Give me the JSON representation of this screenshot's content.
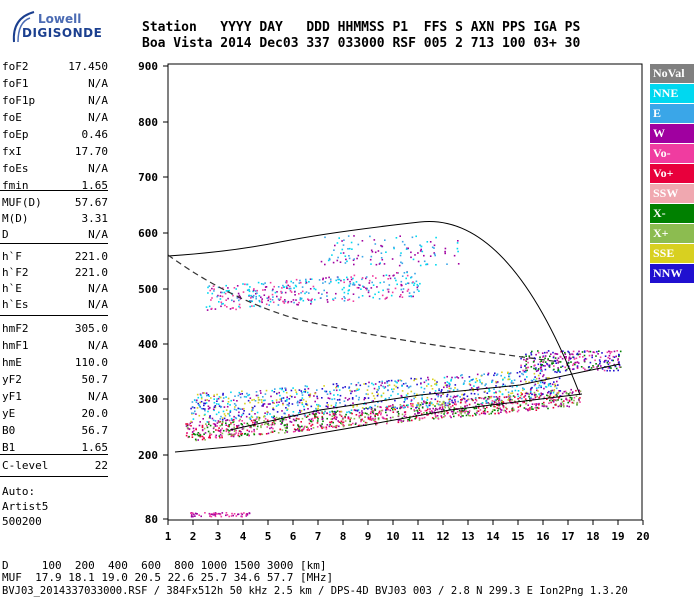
{
  "logo": {
    "line1": "Lowell",
    "line2": "DIGISONDE"
  },
  "header": {
    "row1": "Station   YYYY DAY   DDD HHMMSS P1  FFS S AXN PPS IGA PS",
    "row2": "Boa Vista 2014 Dec03 337 033000 RSF 005 2 713 100 03+ 30"
  },
  "params_group1": [
    {
      "k": "foF2",
      "v": "17.450"
    },
    {
      "k": "foF1",
      "v": "N/A"
    },
    {
      "k": "foF1p",
      "v": "N/A"
    },
    {
      "k": "foE",
      "v": "N/A"
    },
    {
      "k": "foEp",
      "v": "0.46"
    },
    {
      "k": "fxI",
      "v": "17.70"
    },
    {
      "k": "foEs",
      "v": "N/A"
    },
    {
      "k": "fmin",
      "v": "1.65"
    }
  ],
  "params_group2": [
    {
      "k": "MUF(D)",
      "v": "57.67"
    },
    {
      "k": "M(D)",
      "v": "3.31"
    },
    {
      "k": "D",
      "v": "N/A"
    }
  ],
  "params_group3": [
    {
      "k": "h`F",
      "v": "221.0"
    },
    {
      "k": "h`F2",
      "v": "221.0"
    },
    {
      "k": "h`E",
      "v": "N/A"
    },
    {
      "k": "h`Es",
      "v": "N/A"
    }
  ],
  "params_group4": [
    {
      "k": "hmF2",
      "v": "305.0"
    },
    {
      "k": "hmF1",
      "v": "N/A"
    },
    {
      "k": "hmE",
      "v": "110.0"
    },
    {
      "k": "yF2",
      "v": "50.7"
    },
    {
      "k": "yF1",
      "v": "N/A"
    },
    {
      "k": "yE",
      "v": "20.0"
    },
    {
      "k": "B0",
      "v": "56.7"
    },
    {
      "k": "B1",
      "v": "1.65"
    }
  ],
  "params_group5": [
    {
      "k": "C-level",
      "v": "22"
    }
  ],
  "autoscale": {
    "line1": "Auto:",
    "line2": "Artist5",
    "line3": "500200"
  },
  "legend": [
    {
      "label": "NoVal",
      "color": "#808080"
    },
    {
      "label": "NNE",
      "color": "#00d8f0"
    },
    {
      "label": "E",
      "color": "#3aa6e8"
    },
    {
      "label": "W",
      "color": "#a000a0"
    },
    {
      "label": "Vo-",
      "color": "#f03ca0"
    },
    {
      "label": "Vo+",
      "color": "#e8003c"
    },
    {
      "label": "SSW",
      "color": "#f0a8b0"
    },
    {
      "label": "X-",
      "color": "#008000"
    },
    {
      "label": "X+",
      "color": "#8cbc50"
    },
    {
      "label": "SSE",
      "color": "#d8d020"
    },
    {
      "label": "NNW",
      "color": "#2010d0"
    }
  ],
  "axes": {
    "y_ticks": [
      "900",
      "800",
      "700",
      "600",
      "500",
      "400",
      "300",
      "200",
      "80"
    ],
    "x_ticks": [
      "1",
      "2",
      "3",
      "4",
      "5",
      "6",
      "7",
      "8",
      "9",
      "10",
      "11",
      "12",
      "13",
      "14",
      "15",
      "16",
      "17",
      "18",
      "19",
      "20"
    ]
  },
  "bottom": {
    "d_row": "D     100  200  400  600  800 1000 1500 3000 [km]",
    "muf_row": "MUF  17.9 18.1 19.0 20.5 22.6 25.7 34.6 57.7 [MHz]",
    "footer": "BVJ03_2014337033000.RSF / 384Fx512h 50 kHz 2.5 km / DPS-4D BVJ03 003 / 2.8 N 299.3 E Ion2Png 1.3.20"
  }
}
